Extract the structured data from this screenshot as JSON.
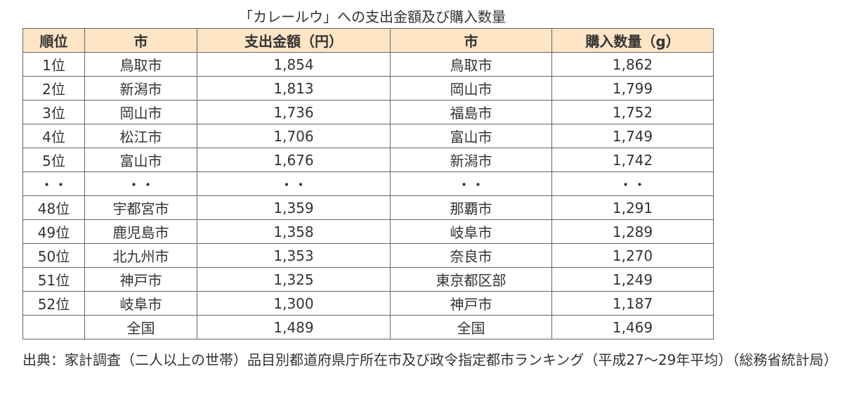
{
  "title": "「カレールウ」への支出金額及び購入数量",
  "table": {
    "header": [
      "順位",
      "市",
      "支出金額（円）",
      "市",
      "購入数量（g）"
    ],
    "rows": [
      [
        "1位",
        "鳥取市",
        "1,854",
        "鳥取市",
        "1,862"
      ],
      [
        "2位",
        "新潟市",
        "1,813",
        "岡山市",
        "1,799"
      ],
      [
        "3位",
        "岡山市",
        "1,736",
        "福島市",
        "1,752"
      ],
      [
        "4位",
        "松江市",
        "1,706",
        "富山市",
        "1,749"
      ],
      [
        "5位",
        "富山市",
        "1,676",
        "新潟市",
        "1,742"
      ],
      [
        "・・",
        "・・",
        "・・",
        "・・",
        "・・"
      ],
      [
        "48位",
        "宇都宮市",
        "1,359",
        "那覇市",
        "1,291"
      ],
      [
        "49位",
        "鹿児島市",
        "1,358",
        "岐阜市",
        "1,289"
      ],
      [
        "50位",
        "北九州市",
        "1,353",
        "奈良市",
        "1,270"
      ],
      [
        "51位",
        "神戸市",
        "1,325",
        "東京都区部",
        "1,249"
      ],
      [
        "52位",
        "岐阜市",
        "1,300",
        "神戸市",
        "1,187"
      ],
      [
        null,
        "全国",
        "1,489",
        "全国",
        "1,469"
      ]
    ]
  },
  "source": "出典：家計調査（二人以上の世帯）品目別都道府県庁所在市及び政令指定都市ランキング（平成27～29年平均）（総務省統計局）"
}
